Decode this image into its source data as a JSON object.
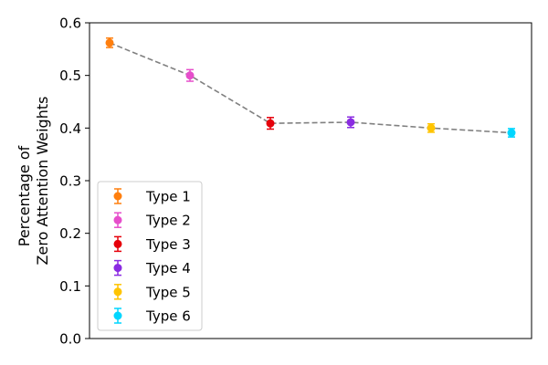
{
  "chart_data": {
    "type": "scatter",
    "title": "",
    "xlabel": "",
    "ylabel_lines": [
      "Percentage of",
      "Zero Attention Weights"
    ],
    "ylim": [
      0.0,
      0.6
    ],
    "yticks": [
      0.0,
      0.1,
      0.2,
      0.3,
      0.4,
      0.5,
      0.6
    ],
    "xticks_visible": false,
    "grid": false,
    "legend_position": "lower-left",
    "connector": {
      "style": "dashed",
      "color": "#808080"
    },
    "series": [
      {
        "name": "Type 1",
        "x": 1,
        "y": 0.562,
        "err": 0.009,
        "color": "#ff7f0e"
      },
      {
        "name": "Type 2",
        "x": 2,
        "y": 0.5,
        "err": 0.011,
        "color": "#e64ecb"
      },
      {
        "name": "Type 3",
        "x": 3,
        "y": 0.409,
        "err": 0.011,
        "color": "#e6000b"
      },
      {
        "name": "Type 4",
        "x": 4,
        "y": 0.411,
        "err": 0.01,
        "color": "#8a2be2"
      },
      {
        "name": "Type 5",
        "x": 5,
        "y": 0.4,
        "err": 0.008,
        "color": "#ffc400"
      },
      {
        "name": "Type 6",
        "x": 6,
        "y": 0.391,
        "err": 0.008,
        "color": "#00d6ff"
      }
    ]
  }
}
